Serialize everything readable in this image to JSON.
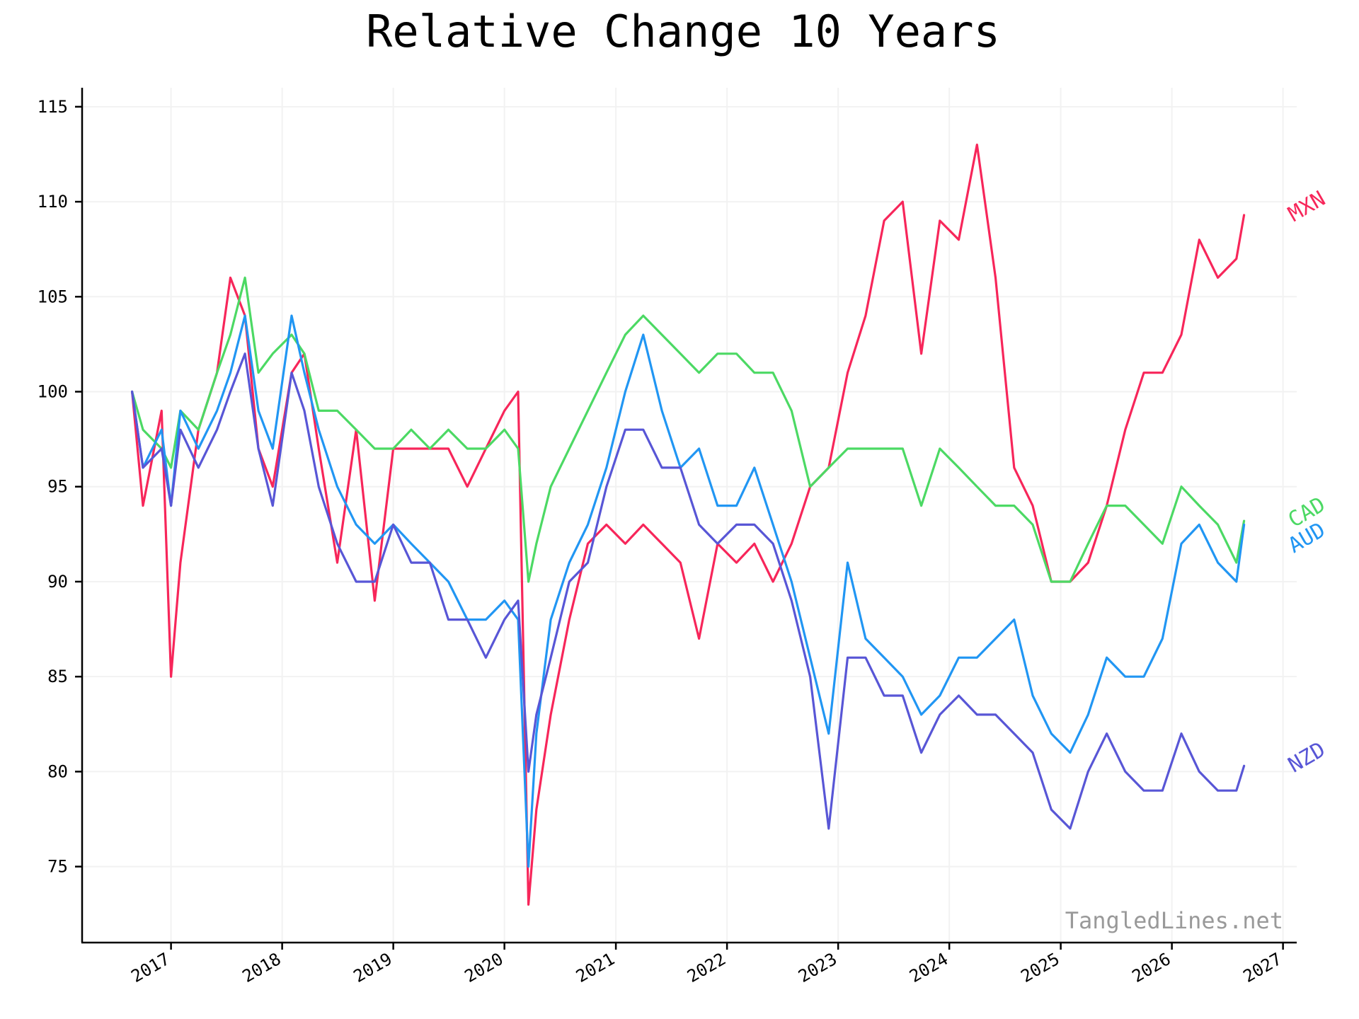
{
  "chart_data": {
    "type": "line",
    "title": "Relative Change 10 Years",
    "xlabel": "",
    "ylabel": "",
    "x_ticks": [
      "2017",
      "2018",
      "2019",
      "2020",
      "2021",
      "2022",
      "2023",
      "2024",
      "2025",
      "2026",
      "2027"
    ],
    "y_ticks": [
      75,
      80,
      85,
      90,
      95,
      100,
      105,
      110,
      115
    ],
    "xlim": [
      "2016-03-15",
      "2027-02-15"
    ],
    "ylim": [
      71,
      116
    ],
    "grid": true,
    "legend": "inline-right",
    "watermark": "TangledLines.net",
    "x": [
      "2016-08-26",
      "2016-10-01",
      "2016-12-01",
      "2017-01-01",
      "2017-02-01",
      "2017-04-01",
      "2017-06-01",
      "2017-07-15",
      "2017-09-01",
      "2017-10-15",
      "2017-12-01",
      "2018-02-01",
      "2018-03-15",
      "2018-05-01",
      "2018-07-01",
      "2018-09-01",
      "2018-11-01",
      "2019-01-01",
      "2019-03-01",
      "2019-05-01",
      "2019-07-01",
      "2019-09-01",
      "2019-11-01",
      "2020-01-01",
      "2020-02-15",
      "2020-03-20",
      "2020-04-15",
      "2020-06-01",
      "2020-08-01",
      "2020-10-01",
      "2020-12-01",
      "2021-02-01",
      "2021-04-01",
      "2021-06-01",
      "2021-08-01",
      "2021-10-01",
      "2021-12-01",
      "2022-02-01",
      "2022-04-01",
      "2022-06-01",
      "2022-08-01",
      "2022-10-01",
      "2022-12-01",
      "2023-02-01",
      "2023-04-01",
      "2023-06-01",
      "2023-08-01",
      "2023-10-01",
      "2023-12-01",
      "2024-02-01",
      "2024-04-01",
      "2024-06-01",
      "2024-08-01",
      "2024-10-01",
      "2024-12-01",
      "2025-02-01",
      "2025-04-01",
      "2025-06-01",
      "2025-08-01",
      "2025-10-01",
      "2025-12-01",
      "2026-02-01",
      "2026-04-01",
      "2026-06-01",
      "2026-08-01",
      "2026-08-26"
    ],
    "series": [
      {
        "name": "MXN",
        "color": "#f7265a",
        "values": [
          100,
          94,
          99,
          85,
          91,
          98,
          101,
          106,
          104,
          97,
          95,
          101,
          102,
          97,
          91,
          98,
          89,
          97,
          97,
          97,
          97,
          95,
          97,
          99,
          100,
          73,
          78,
          83,
          88,
          92,
          93,
          92,
          93,
          92,
          91,
          87,
          92,
          91,
          92,
          90,
          92,
          95,
          96,
          101,
          104,
          109,
          110,
          102,
          109,
          108,
          113,
          106,
          96,
          94,
          90,
          90,
          91,
          94,
          98,
          101,
          101,
          103,
          108,
          106,
          107,
          109.3
        ]
      },
      {
        "name": "CAD",
        "color": "#4cd964",
        "values": [
          100,
          98,
          97,
          96,
          99,
          98,
          101,
          103,
          106,
          101,
          102,
          103,
          102,
          99,
          99,
          98,
          97,
          97,
          98,
          97,
          98,
          97,
          97,
          98,
          97,
          90,
          92,
          95,
          97,
          99,
          101,
          103,
          104,
          103,
          102,
          101,
          102,
          102,
          101,
          101,
          99,
          95,
          96,
          97,
          97,
          97,
          97,
          94,
          97,
          96,
          95,
          94,
          94,
          93,
          90,
          90,
          92,
          94,
          94,
          93,
          92,
          95,
          94,
          93,
          91,
          93.2
        ]
      },
      {
        "name": "AUD",
        "color": "#2196f3",
        "values": [
          100,
          96,
          98,
          94,
          99,
          97,
          99,
          101,
          104,
          99,
          97,
          104,
          101,
          98,
          95,
          93,
          92,
          93,
          92,
          91,
          90,
          88,
          88,
          89,
          88,
          75,
          82,
          88,
          91,
          93,
          96,
          100,
          103,
          99,
          96,
          97,
          94,
          94,
          96,
          93,
          90,
          86,
          82,
          91,
          87,
          86,
          85,
          83,
          84,
          86,
          86,
          87,
          88,
          84,
          82,
          81,
          83,
          86,
          85,
          85,
          87,
          92,
          93,
          91,
          90,
          93
        ]
      },
      {
        "name": "NZD",
        "color": "#5856d6",
        "values": [
          100,
          96,
          97,
          94,
          98,
          96,
          98,
          100,
          102,
          97,
          94,
          101,
          99,
          95,
          92,
          90,
          90,
          93,
          91,
          91,
          88,
          88,
          86,
          88,
          89,
          80,
          83,
          86,
          90,
          91,
          95,
          98,
          98,
          96,
          96,
          93,
          92,
          93,
          93,
          92,
          89,
          85,
          77,
          86,
          86,
          84,
          84,
          81,
          83,
          84,
          83,
          83,
          82,
          81,
          78,
          77,
          80,
          82,
          80,
          79,
          79,
          82,
          80,
          79,
          79,
          80.3
        ]
      }
    ]
  }
}
